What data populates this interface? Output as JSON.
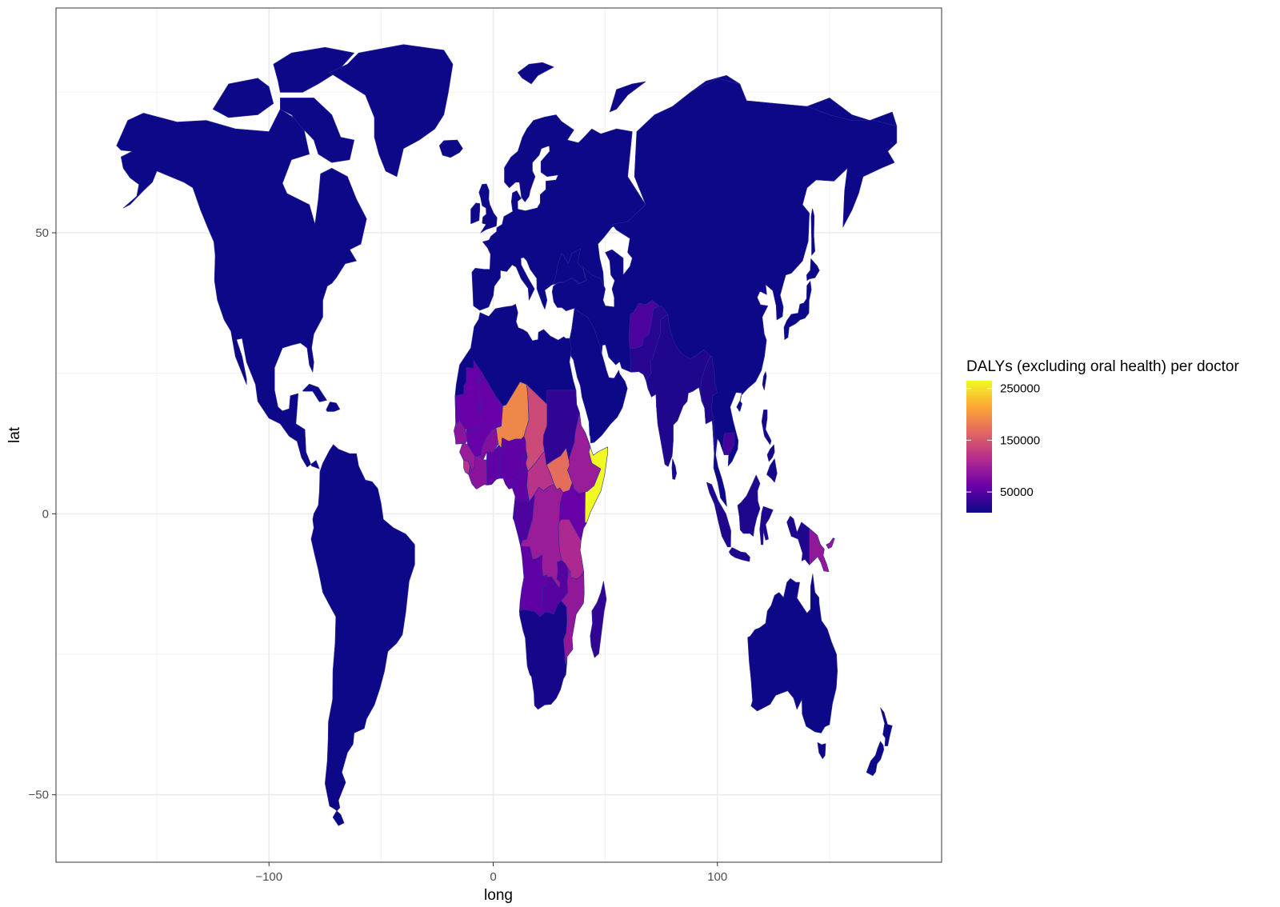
{
  "chart_data": {
    "type": "choropleth-map",
    "title": "",
    "xlabel": "long",
    "ylabel": "lat",
    "xlim": [
      -195,
      200
    ],
    "ylim": [
      -62,
      90
    ],
    "x_ticks": [
      {
        "value": -100,
        "label": "−100"
      },
      {
        "value": 0,
        "label": "0"
      },
      {
        "value": 100,
        "label": "100"
      }
    ],
    "y_ticks": [
      {
        "value": 50,
        "label": "50"
      },
      {
        "value": 0,
        "label": "0"
      },
      {
        "value": -50,
        "label": "−50"
      }
    ],
    "x_minor_ticks": [
      -150,
      -50,
      50,
      150
    ],
    "y_minor_ticks": [
      75,
      25,
      -25
    ],
    "grid": true,
    "theme": "bw",
    "legend": {
      "title": "DALYs (excluding oral health) per doctor",
      "position": "right",
      "min": 10000,
      "max": 265000,
      "breaks": [
        {
          "value": 250000,
          "label": "250000"
        },
        {
          "value": 150000,
          "label": "150000"
        },
        {
          "value": 50000,
          "label": "50000"
        }
      ],
      "palette": [
        "#0d0887",
        "#6a00a8",
        "#b12a90",
        "#e16462",
        "#fca636",
        "#f0f921"
      ]
    },
    "regions": [
      {
        "name": "North America",
        "value": 10000
      },
      {
        "name": "Greenland",
        "value": 10000
      },
      {
        "name": "South America",
        "value": 10000
      },
      {
        "name": "Europe",
        "value": 10000
      },
      {
        "name": "Asia",
        "value": 10000
      },
      {
        "name": "Australia",
        "value": 10000
      },
      {
        "name": "North Africa",
        "value": 10000
      },
      {
        "name": "Mauritania",
        "value": 60000
      },
      {
        "name": "Mali",
        "value": 60000
      },
      {
        "name": "Senegal",
        "value": 85000
      },
      {
        "name": "Guinea",
        "value": 95000
      },
      {
        "name": "Sierra Leone",
        "value": 120000
      },
      {
        "name": "Burkina Faso",
        "value": 80000
      },
      {
        "name": "Niger",
        "value": 190000
      },
      {
        "name": "Nigeria",
        "value": 55000
      },
      {
        "name": "Chad",
        "value": 140000
      },
      {
        "name": "Central African Republic",
        "value": 120000
      },
      {
        "name": "Sudan",
        "value": 30000
      },
      {
        "name": "South Sudan",
        "value": 170000
      },
      {
        "name": "Ethiopia",
        "value": 95000
      },
      {
        "name": "Somalia",
        "value": 265000
      },
      {
        "name": "Kenya",
        "value": 60000
      },
      {
        "name": "DR Congo",
        "value": 95000
      },
      {
        "name": "Congo",
        "value": 45000
      },
      {
        "name": "Angola",
        "value": 55000
      },
      {
        "name": "Tanzania",
        "value": 110000
      },
      {
        "name": "Zambia",
        "value": 50000
      },
      {
        "name": "Mozambique",
        "value": 90000
      },
      {
        "name": "Southern Africa",
        "value": 15000
      },
      {
        "name": "Madagascar",
        "value": 30000
      },
      {
        "name": "Afghanistan",
        "value": 45000
      },
      {
        "name": "Pakistan",
        "value": 25000
      },
      {
        "name": "India",
        "value": 20000
      },
      {
        "name": "Myanmar",
        "value": 20000
      },
      {
        "name": "Cambodia",
        "value": 40000
      },
      {
        "name": "Indonesia",
        "value": 20000
      },
      {
        "name": "Papua New Guinea",
        "value": 90000
      },
      {
        "name": "Japan",
        "value": 10000
      },
      {
        "name": "New Zealand",
        "value": 10000
      },
      {
        "name": "Philippines",
        "value": 15000
      },
      {
        "name": "UK",
        "value": 10000
      },
      {
        "name": "Iceland",
        "value": 10000
      },
      {
        "name": "Svalbard",
        "value": 10000
      },
      {
        "name": "Sri Lanka",
        "value": 15000
      }
    ]
  }
}
